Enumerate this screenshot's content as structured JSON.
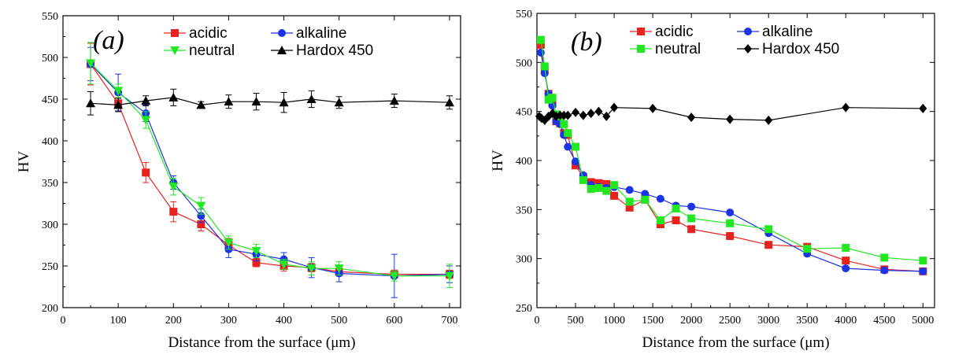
{
  "chart_data": [
    {
      "type": "line",
      "panel_label": "(a)",
      "xlabel": "Distance from the surface (μm)",
      "ylabel": "HV",
      "xlim": [
        0,
        720
      ],
      "ylim": [
        200,
        550
      ],
      "xticks": [
        0,
        100,
        200,
        300,
        400,
        500,
        600,
        700
      ],
      "yticks": [
        200,
        250,
        300,
        350,
        400,
        450,
        500,
        550
      ],
      "legend_position": "top-right",
      "series": [
        {
          "name": "acidic",
          "color": "#e8231f",
          "marker": "square",
          "x": [
            50,
            100,
            150,
            200,
            250,
            300,
            350,
            400,
            450,
            500,
            600,
            700
          ],
          "y": [
            492,
            445,
            362,
            315,
            300,
            275,
            254,
            250,
            248,
            243,
            240,
            240
          ],
          "err": [
            25,
            10,
            12,
            12,
            8,
            8,
            5,
            6,
            5,
            5,
            5,
            5
          ]
        },
        {
          "name": "alkaline",
          "color": "#1a34e6",
          "marker": "circle",
          "x": [
            50,
            100,
            150,
            200,
            250,
            300,
            350,
            400,
            450,
            500,
            600,
            700
          ],
          "y": [
            492,
            458,
            433,
            350,
            310,
            270,
            264,
            258,
            248,
            241,
            238,
            240
          ],
          "err": [
            20,
            22,
            10,
            8,
            8,
            10,
            8,
            8,
            12,
            10,
            26,
            10
          ]
        },
        {
          "name": "neutral",
          "color": "#22e822",
          "marker": "triangle-down",
          "x": [
            50,
            100,
            150,
            200,
            250,
            300,
            350,
            400,
            450,
            500,
            600,
            700
          ],
          "y": [
            493,
            460,
            425,
            345,
            322,
            278,
            268,
            252,
            247,
            247,
            238,
            238
          ],
          "err": [
            25,
            8,
            10,
            10,
            10,
            8,
            8,
            6,
            8,
            8,
            6,
            14
          ]
        },
        {
          "name": "Hardox 450",
          "color": "#000000",
          "marker": "triangle-up",
          "x": [
            50,
            100,
            150,
            200,
            250,
            300,
            350,
            400,
            450,
            500,
            600,
            700
          ],
          "y": [
            445,
            443,
            448,
            452,
            443,
            447,
            447,
            446,
            450,
            446,
            448,
            446
          ],
          "err": [
            14,
            8,
            6,
            10,
            4,
            8,
            10,
            12,
            10,
            7,
            8,
            8
          ]
        }
      ]
    },
    {
      "type": "line",
      "panel_label": "(b)",
      "xlabel": "Distance from the surface (μm)",
      "ylabel": "HV",
      "xlim": [
        0,
        5150
      ],
      "ylim": [
        250,
        550
      ],
      "xticks": [
        0,
        500,
        1000,
        1500,
        2000,
        2500,
        3000,
        3500,
        4000,
        4500,
        5000
      ],
      "yticks": [
        250,
        300,
        350,
        400,
        450,
        500,
        550
      ],
      "legend_position": "top-right",
      "series": [
        {
          "name": "acidic",
          "color": "#e8231f",
          "marker": "square",
          "x": [
            50,
            100,
            150,
            200,
            250,
            300,
            350,
            400,
            500,
            600,
            700,
            800,
            900,
            1000,
            1200,
            1400,
            1600,
            1800,
            2000,
            2500,
            3000,
            3500,
            4000,
            4500,
            5000
          ],
          "y": [
            518,
            492,
            468,
            458,
            440,
            438,
            428,
            426,
            395,
            383,
            378,
            377,
            376,
            364,
            352,
            360,
            335,
            339,
            330,
            323,
            314,
            312,
            298,
            289,
            287
          ]
        },
        {
          "name": "alkaline",
          "color": "#1a34e6",
          "marker": "circle",
          "x": [
            50,
            100,
            150,
            200,
            250,
            300,
            350,
            400,
            500,
            600,
            700,
            800,
            900,
            1000,
            1200,
            1400,
            1600,
            1800,
            2000,
            2500,
            3000,
            3500,
            4000,
            4500,
            5000
          ],
          "y": [
            510,
            489,
            468,
            456,
            440,
            437,
            426,
            414,
            399,
            385,
            375,
            373,
            372,
            373,
            370,
            366,
            361,
            354,
            353,
            347,
            326,
            305,
            290,
            288,
            287
          ]
        },
        {
          "name": "neutral",
          "color": "#22e822",
          "marker": "square",
          "x": [
            50,
            100,
            150,
            200,
            250,
            300,
            350,
            400,
            500,
            600,
            700,
            800,
            900,
            1000,
            1200,
            1400,
            1600,
            1800,
            2000,
            2500,
            3000,
            3500,
            4000,
            4500,
            5000
          ],
          "y": [
            523,
            496,
            462,
            464,
            447,
            445,
            437,
            428,
            414,
            380,
            371,
            372,
            369,
            375,
            358,
            360,
            339,
            351,
            341,
            336,
            330,
            310,
            311,
            301,
            298
          ]
        },
        {
          "name": "Hardox 450",
          "color": "#000000",
          "marker": "diamond",
          "x": [
            30,
            60,
            100,
            150,
            200,
            250,
            300,
            350,
            400,
            500,
            600,
            700,
            800,
            900,
            1000,
            1500,
            2000,
            2500,
            3000,
            4000,
            5000
          ],
          "y": [
            445,
            443,
            441,
            445,
            448,
            445,
            446,
            446,
            446,
            449,
            446,
            448,
            450,
            445,
            454,
            453,
            444,
            442,
            441,
            454,
            453
          ]
        }
      ]
    }
  ]
}
